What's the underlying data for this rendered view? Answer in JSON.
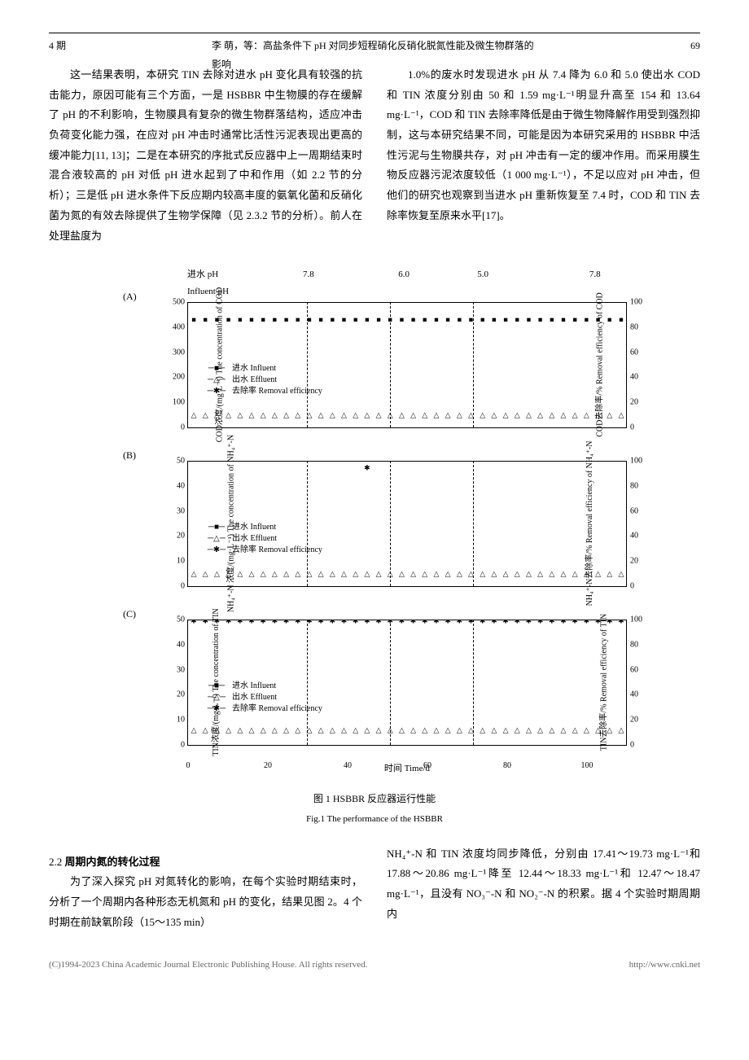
{
  "header": {
    "issue": "4 期",
    "title": "李  萌，等：高盐条件下 pH 对同步短程硝化反硝化脱氮性能及微生物群落的影响",
    "page": "69"
  },
  "body": {
    "left_col_p1": "这一结果表明，本研究 TIN 去除对进水 pH 变化具有较强的抗击能力，原因可能有三个方面，一是 HSBBR 中生物膜的存在缓解了 pH 的不利影响，生物膜具有复杂的微生物群落结构，适应冲击负荷变化能力强，在应对 pH 冲击时通常比活性污泥表现出更高的缓冲能力[11, 13]；二是在本研究的序批式反应器中上一周期结束时混合液较高的 pH 对低 pH 进水起到了中和作用（如 2.2 节的分析）；三是低 pH 进水条件下反应期内较高丰度的氨氧化菌和反硝化菌为氮的有效去除提供了生物学保障（见 2.3.2 节的分析）。前人在处理盐度为",
    "right_col_p1": "1.0%的废水时发现进水 pH 从 7.4 降为 6.0 和 5.0 使出水 COD 和 TIN 浓度分别由 50 和 1.59 mg·L⁻¹明显升高至 154 和 13.64 mg·L⁻¹，COD 和 TIN 去除率降低是由于微生物降解作用受到强烈抑制，这与本研究结果不同，可能是因为本研究采用的 HSBBR 中活性污泥与生物膜共存，对 pH 冲击有一定的缓冲作用。而采用膜生物反应器污泥浓度较低（1 000 mg·L⁻¹），不足以应对 pH 冲击，但他们的研究也观察到当进水 pH 重新恢复至 7.4 时，COD 和 TIN 去除率恢复至原来水平[17]。"
  },
  "figure": {
    "phase_header_cn": "进水 pH",
    "phase_header_en": "Influent pH",
    "phases": [
      "7.8",
      "6.0",
      "5.0",
      "7.8"
    ],
    "phase_boundaries_pct": [
      27,
      46,
      65
    ],
    "x_axis_label": "时间 Time/d",
    "x_ticks": [
      0,
      20,
      40,
      60,
      80,
      100
    ],
    "x_max": 110,
    "legend": {
      "influent": "进水 Influent",
      "effluent": "出水 Effluent",
      "removal": "去除率 Removal efficiency",
      "sym_influent": "─■─",
      "sym_effluent": "─△─",
      "sym_removal": "─✱─"
    },
    "panels": {
      "A": {
        "label": "(A)",
        "y_left_label": "COD浓度/(mg·L⁻¹)\nThe concentration of COD",
        "y_right_label": "COD去除率/%\nRemoval efficiency of COD",
        "y_left_ticks": [
          0,
          100,
          200,
          300,
          400,
          500
        ],
        "y_left_max": 500,
        "y_right_ticks": [
          0,
          20,
          40,
          60,
          80,
          100
        ],
        "y_right_max": 100,
        "series": {
          "influent_y": 400,
          "effluent_y": 20,
          "removal_y": 96,
          "n_points": 38
        }
      },
      "B": {
        "label": "(B)",
        "y_left_label": "NH₄⁺-N 浓度/(mg·L⁻¹)\nThe concentration of NH₄⁺-N",
        "y_right_label": "NH₄⁺-N去除率/%\nRemoval efficiency of NH₄⁺-N",
        "y_left_ticks": [
          0,
          10,
          20,
          30,
          40,
          50
        ],
        "y_left_max": 50,
        "y_right_ticks": [
          0,
          20,
          40,
          60,
          80,
          100
        ],
        "y_right_max": 100,
        "series": {
          "influent_y": 48,
          "effluent_y": 2,
          "removal_y": 97,
          "removal_dip_x": 45,
          "removal_dip_y": 88,
          "n_points": 38
        }
      },
      "C": {
        "label": "(C)",
        "y_left_label": "TIN浓度/(mg·L⁻¹)\nThe concentration of TIN",
        "y_right_label": "TIN去除率/%\nRemoval efficiency of TIN",
        "y_left_ticks": [
          0,
          10,
          20,
          30,
          40,
          50
        ],
        "y_left_max": 50,
        "y_right_ticks": [
          0,
          20,
          40,
          60,
          80,
          100
        ],
        "y_right_max": 100,
        "series": {
          "influent_y": 48,
          "effluent_y": 3,
          "removal_y": 93,
          "n_points": 38
        }
      }
    },
    "caption_cn": "图 1  HSBBR 反应器运行性能",
    "caption_en": "Fig.1  The performance of the HSBBR"
  },
  "section22": {
    "heading": "2.2 周期内氮的转化过程",
    "left_p": "为了深入探究 pH 对氮转化的影响，在每个实验时期结束时，分析了一个周期内各种形态无机氮和 pH 的变化，结果见图 2。4 个时期在前缺氧阶段（15～135 min）",
    "right_p": "NH₄⁺-N 和 TIN 浓度均同步降低，分别由 17.41～19.73 mg·L⁻¹和 17.88～20.86 mg·L⁻¹降至 12.44～18.33 mg·L⁻¹和 12.47～18.47 mg·L⁻¹，且没有 NO₃⁻-N 和 NO₂⁻-N 的积累。据 4 个实验时期周期内"
  },
  "footer": {
    "left": "(C)1994-2023 China Academic Journal Electronic Publishing House. All rights reserved.",
    "right": "http://www.cnki.net"
  },
  "style": {
    "marker_influent": "■",
    "marker_effluent": "△",
    "marker_removal": "✱",
    "colors": {
      "line": "#000000",
      "bg": "#ffffff"
    }
  }
}
